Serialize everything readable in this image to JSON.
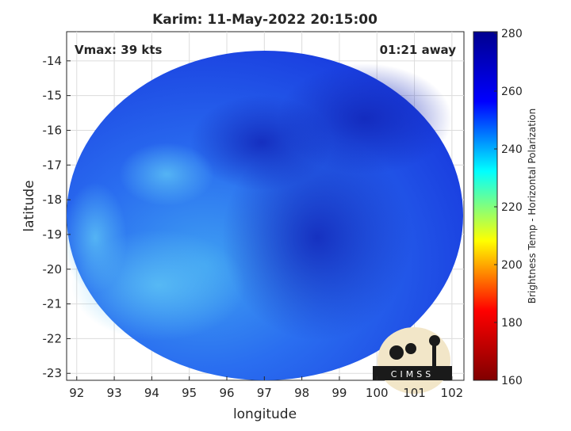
{
  "chart_data": {
    "type": "image-map",
    "title": "Karim: 11-May-2022 20:15:00",
    "annotations": [
      "Vmax: 39 kts",
      "01:21 away"
    ],
    "x_label": "longitude",
    "y_label": "latitude",
    "xlim": [
      91.73,
      102.32
    ],
    "ylim": [
      -23.2,
      -13.16
    ],
    "xticks": [
      92,
      93,
      94,
      95,
      96,
      97,
      98,
      99,
      100,
      101,
      102
    ],
    "yticks": [
      -14,
      -15,
      -16,
      -17,
      -18,
      -19,
      -20,
      -21,
      -22,
      -23
    ],
    "grid": true,
    "colorbar": {
      "label": "Brightness Temp - Horizontal Polarization",
      "lim": [
        160,
        280
      ],
      "ticks": [
        160,
        180,
        200,
        220,
        240,
        260,
        280
      ],
      "colormap": [
        "#800000",
        "#ff0000",
        "#ffff00",
        "#00ffff",
        "#0000ff",
        "#00008f"
      ]
    },
    "logo": "CIMSS"
  }
}
